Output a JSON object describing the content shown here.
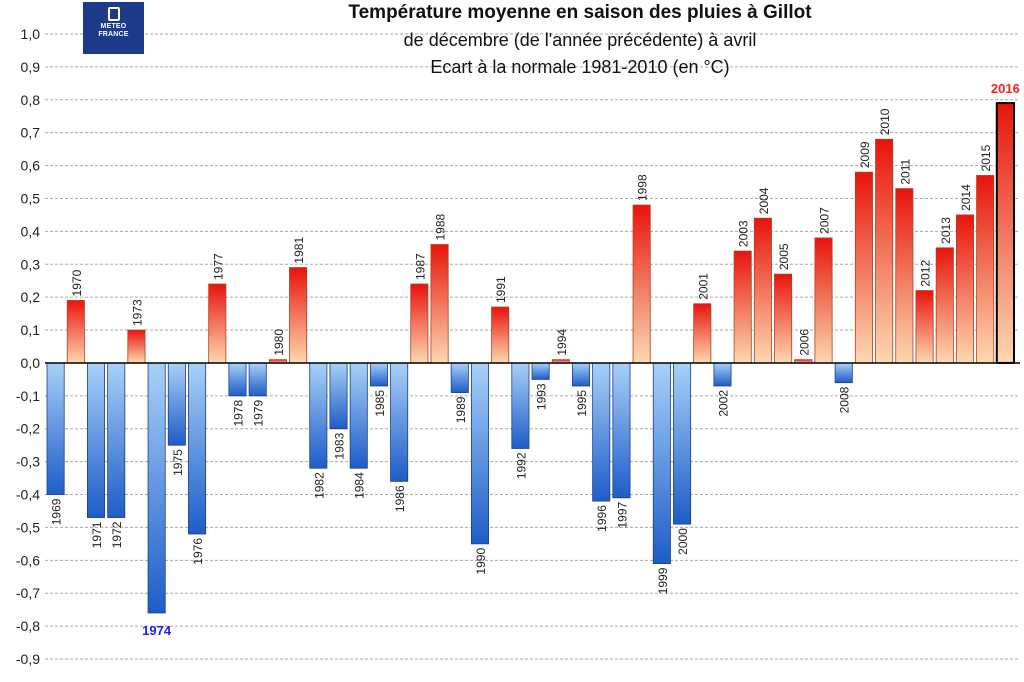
{
  "logo": {
    "line1": "METEO",
    "line2": "FRANCE"
  },
  "chart_data": {
    "type": "bar",
    "title": "Température moyenne en saison des pluies à Gillot",
    "subtitle": "de décembre (de l'année précédente) à avril",
    "subtitle2": "Ecart à la normale 1981-2010 (en °C)",
    "xlabel": "",
    "ylabel": "",
    "ylim": [
      -0.9,
      1.0
    ],
    "yticks": [
      "1,0",
      "0,9",
      "0,8",
      "0,7",
      "0,6",
      "0,5",
      "0,4",
      "0,3",
      "0,2",
      "0,1",
      "0,0",
      "-0,1",
      "-0,2",
      "-0,3",
      "-0,4",
      "-0,5",
      "-0,6",
      "-0,7",
      "-0,8",
      "-0,9"
    ],
    "grid": true,
    "categories": [
      "1969",
      "1970",
      "1971",
      "1972",
      "1973",
      "1974",
      "1975",
      "1976",
      "1977",
      "1978",
      "1979",
      "1980",
      "1981",
      "1982",
      "1983",
      "1984",
      "1985",
      "1986",
      "1987",
      "1988",
      "1989",
      "1990",
      "1991",
      "1992",
      "1993",
      "1994",
      "1995",
      "1996",
      "1997",
      "1998",
      "1999",
      "2000",
      "2001",
      "2002",
      "2003",
      "2004",
      "2005",
      "2006",
      "2007",
      "2008",
      "2009",
      "2010",
      "2011",
      "2012",
      "2013",
      "2014",
      "2015",
      "2016"
    ],
    "values": [
      -0.4,
      0.19,
      -0.47,
      -0.47,
      0.1,
      -0.76,
      -0.25,
      -0.52,
      0.24,
      -0.1,
      -0.1,
      0.01,
      0.29,
      -0.32,
      -0.2,
      -0.32,
      -0.07,
      -0.36,
      0.24,
      0.36,
      -0.09,
      -0.55,
      0.17,
      -0.26,
      -0.05,
      0.01,
      -0.07,
      -0.42,
      -0.41,
      0.48,
      -0.61,
      -0.49,
      0.18,
      -0.07,
      0.34,
      0.44,
      0.27,
      0.01,
      0.38,
      -0.06,
      0.58,
      0.68,
      0.53,
      0.22,
      0.35,
      0.45,
      0.57,
      0.79
    ],
    "highlight_min": {
      "label": "1974",
      "color": "#1a1aff"
    },
    "highlight_max": {
      "label": "2016",
      "color": "#ff2020"
    },
    "colors": {
      "warm_top": "#e8140c",
      "warm_bottom": "#fcd8b0",
      "cool_top": "#a8d0f8",
      "cool_bottom": "#1e5cc8",
      "grid": "#aaaaaa",
      "axis": "#000000"
    }
  }
}
